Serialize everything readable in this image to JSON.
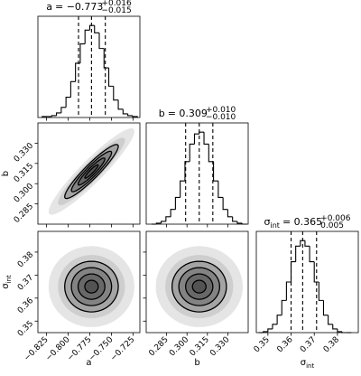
{
  "chart_data": {
    "type": "corner",
    "color": "#000000",
    "hist_ylim": [
      0,
      110
    ],
    "levels": [
      0.5,
      1,
      1.5,
      2
    ],
    "params": [
      {
        "name": "a",
        "title_value": "= −0.773",
        "title_upper": "+0.016",
        "title_lower": "−0.015",
        "lim": [
          -0.835,
          -0.717
        ],
        "ticks": [
          {
            "value": -0.825,
            "label": "−0.825"
          },
          {
            "value": -0.8,
            "label": "−0.800"
          },
          {
            "value": -0.775,
            "label": "−0.775"
          },
          {
            "value": -0.75,
            "label": "−0.750"
          },
          {
            "value": -0.725,
            "label": "−0.725"
          }
        ],
        "bins": [
          -0.83,
          -0.8245,
          -0.819,
          -0.8135,
          -0.808,
          -0.8025,
          -0.797,
          -0.7915,
          -0.786,
          -0.7805,
          -0.775,
          -0.7695,
          -0.764,
          -0.7585,
          -0.753,
          -0.7475,
          -0.742,
          -0.7365,
          -0.731,
          -0.7255,
          -0.72
        ],
        "counts": [
          1,
          1,
          2,
          5,
          11,
          22,
          39,
          59,
          80,
          95,
          100,
          92,
          75,
          54,
          34,
          19,
          9,
          4,
          2,
          1
        ],
        "quantiles": [
          -0.788,
          -0.773,
          -0.757
        ]
      },
      {
        "name": "b",
        "title_value": "= 0.309",
        "title_upper": "+0.010",
        "title_lower": "−0.010",
        "lim": [
          0.27,
          0.345
        ],
        "ticks": [
          0.285,
          {
            "value": 0.3,
            "label": "0.300"
          },
          0.315,
          {
            "value": 0.33,
            "label": "0.330"
          }
        ],
        "bins": [
          0.274,
          0.2775,
          0.281,
          0.2845,
          0.288,
          0.2915,
          0.295,
          0.2985,
          0.302,
          0.3055,
          0.309,
          0.3125,
          0.316,
          0.3195,
          0.323,
          0.3265,
          0.33,
          0.3335,
          0.337,
          0.3405,
          0.344
        ],
        "counts": [
          0,
          1,
          3,
          8,
          16,
          29,
          47,
          68,
          87,
          98,
          100,
          87,
          68,
          47,
          29,
          16,
          8,
          3,
          1,
          0
        ],
        "quantiles": [
          0.299,
          0.309,
          0.319
        ]
      },
      {
        "name": "σ",
        "name_sub": "int",
        "title_value": "= 0.365",
        "title_upper": "+0.006",
        "title_lower": "0.005",
        "lim": [
          0.345,
          0.389
        ],
        "ticks": [
          0.35,
          0.36,
          0.37,
          0.38
        ],
        "bins": [
          0.346,
          0.348,
          0.35,
          0.352,
          0.354,
          0.356,
          0.358,
          0.36,
          0.362,
          0.364,
          0.366,
          0.368,
          0.37,
          0.372,
          0.374,
          0.376,
          0.378,
          0.38,
          0.382,
          0.384,
          0.386
        ],
        "counts": [
          0,
          1,
          4,
          9,
          19,
          35,
          55,
          77,
          94,
          100,
          94,
          77,
          55,
          35,
          19,
          9,
          4,
          1,
          0,
          0
        ],
        "quantiles": [
          0.36,
          0.365,
          0.371
        ]
      }
    ],
    "pairs": [
      {
        "x": 0,
        "y": 1,
        "center": [
          -0.773,
          0.309
        ],
        "sx": 0.0155,
        "sy": 0.01,
        "rho": 0.93
      },
      {
        "x": 0,
        "y": 2,
        "center": [
          -0.773,
          0.365
        ],
        "sx": 0.0155,
        "sy": 0.0055,
        "rho": 0
      },
      {
        "x": 1,
        "y": 2,
        "center": [
          0.309,
          0.365
        ],
        "sx": 0.01,
        "sy": 0.0055,
        "rho": 0
      }
    ]
  }
}
